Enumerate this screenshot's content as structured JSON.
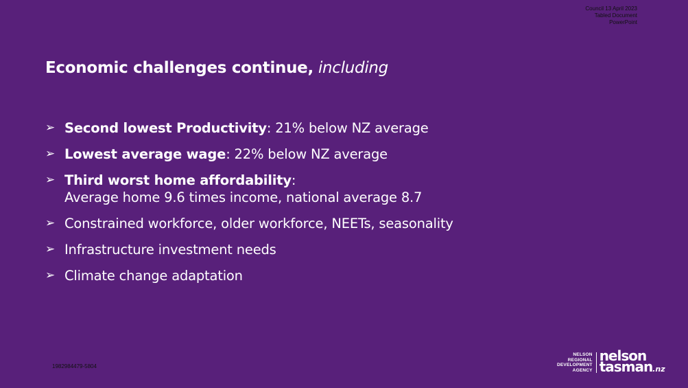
{
  "stamp": {
    "line1": "Council 13 April 2023",
    "line2": "Tabled Document",
    "line3": "PowerPoint"
  },
  "title": {
    "bold": "Economic challenges continue,",
    "italic": "including"
  },
  "bullet_icon": "arrow-bullet-icon",
  "bullets": [
    {
      "bold": "Second lowest Productivity",
      "rest": ":  21% below NZ average"
    },
    {
      "bold": "Lowest average wage",
      "rest": ":  22% below NZ average"
    },
    {
      "bold": "Third worst home affordability",
      "rest": ":",
      "sub": "Average home 9.6 times income, national average 8.7"
    },
    {
      "text": "Constrained workforce, older workforce, NEETs, seasonality"
    },
    {
      "text": "Infrastructure investment needs"
    },
    {
      "text": "Climate change adaptation"
    }
  ],
  "doc_id": "1982984479-5804",
  "logo": {
    "agency_lines": [
      "NELSON",
      "REGIONAL",
      "DEVELOPMENT",
      "AGENCY"
    ],
    "brand_line1": "nelson",
    "brand_line2": "tasman",
    "brand_tld": ".nz"
  },
  "colors": {
    "background": "#58207a",
    "text": "#ffffff"
  }
}
